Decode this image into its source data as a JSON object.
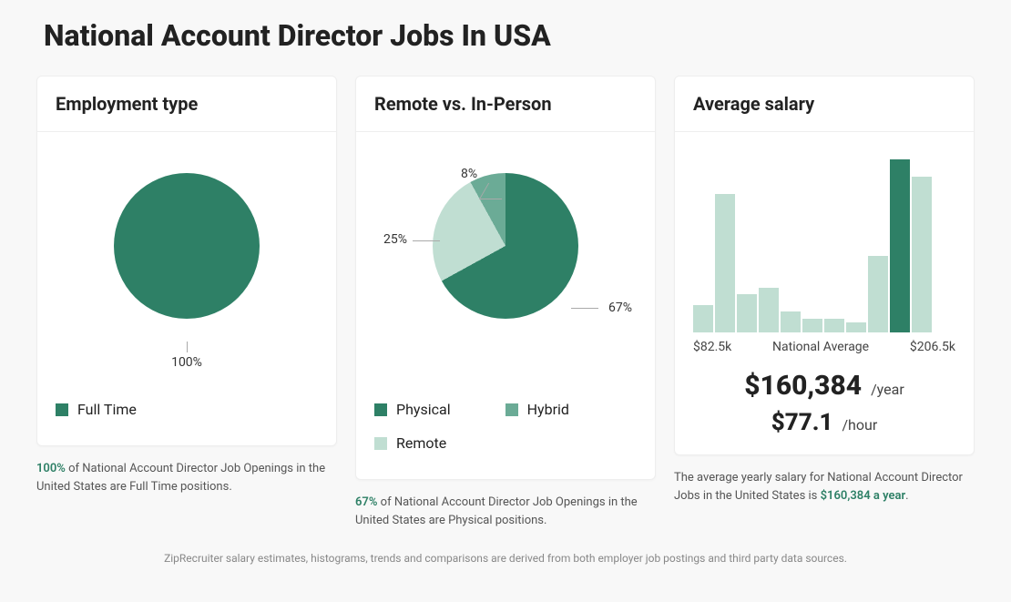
{
  "title": "National Account Director Jobs In USA",
  "colors": {
    "dark": "#2e8066",
    "mid": "#6bab96",
    "light": "#c0ded2",
    "bg": "#ffffff"
  },
  "card1": {
    "title": "Employment type",
    "pie": {
      "slices": [
        {
          "label": "Full Time",
          "pct": 100,
          "color": "#2e8066",
          "callout": "100%"
        }
      ]
    },
    "caption_hl": "100%",
    "caption_rest": " of National Account Director Job Openings in the United States are Full Time positions."
  },
  "card2": {
    "title": "Remote vs. In-Person",
    "pie": {
      "slices": [
        {
          "label": "Physical",
          "pct": 67,
          "color": "#2e8066",
          "callout": "67%"
        },
        {
          "label": "Hybrid",
          "pct": 8,
          "color": "#6bab96",
          "callout": "8%"
        },
        {
          "label": "Remote",
          "pct": 25,
          "color": "#c0ded2",
          "callout": "25%"
        }
      ]
    },
    "caption_hl": "67%",
    "caption_rest": " of National Account Director Job Openings in the United States are Physical positions."
  },
  "card3": {
    "title": "Average salary",
    "histogram": {
      "min_label": "$82.5k",
      "mid_label": "National Average",
      "max_label": "$206.5k",
      "bars": [
        {
          "h": 16,
          "color": "#c0ded2"
        },
        {
          "h": 80,
          "color": "#c0ded2"
        },
        {
          "h": 22,
          "color": "#c0ded2"
        },
        {
          "h": 26,
          "color": "#c0ded2"
        },
        {
          "h": 12,
          "color": "#c0ded2"
        },
        {
          "h": 8,
          "color": "#c0ded2"
        },
        {
          "h": 8,
          "color": "#c0ded2"
        },
        {
          "h": 6,
          "color": "#c0ded2"
        },
        {
          "h": 44,
          "color": "#c0ded2"
        },
        {
          "h": 100,
          "color": "#2e8066"
        },
        {
          "h": 90,
          "color": "#c0ded2"
        }
      ]
    },
    "yearly": {
      "val": "$160,384",
      "unit": "/year"
    },
    "hourly": {
      "val": "$77.1",
      "unit": "/hour"
    },
    "caption_pre": "The average yearly salary for National Account Director Jobs in the United States is ",
    "caption_hl": "$160,384 a year",
    "caption_post": "."
  },
  "footer": "ZipRecruiter salary estimates, histograms, trends and comparisons are derived from both employer job postings and third party data sources."
}
